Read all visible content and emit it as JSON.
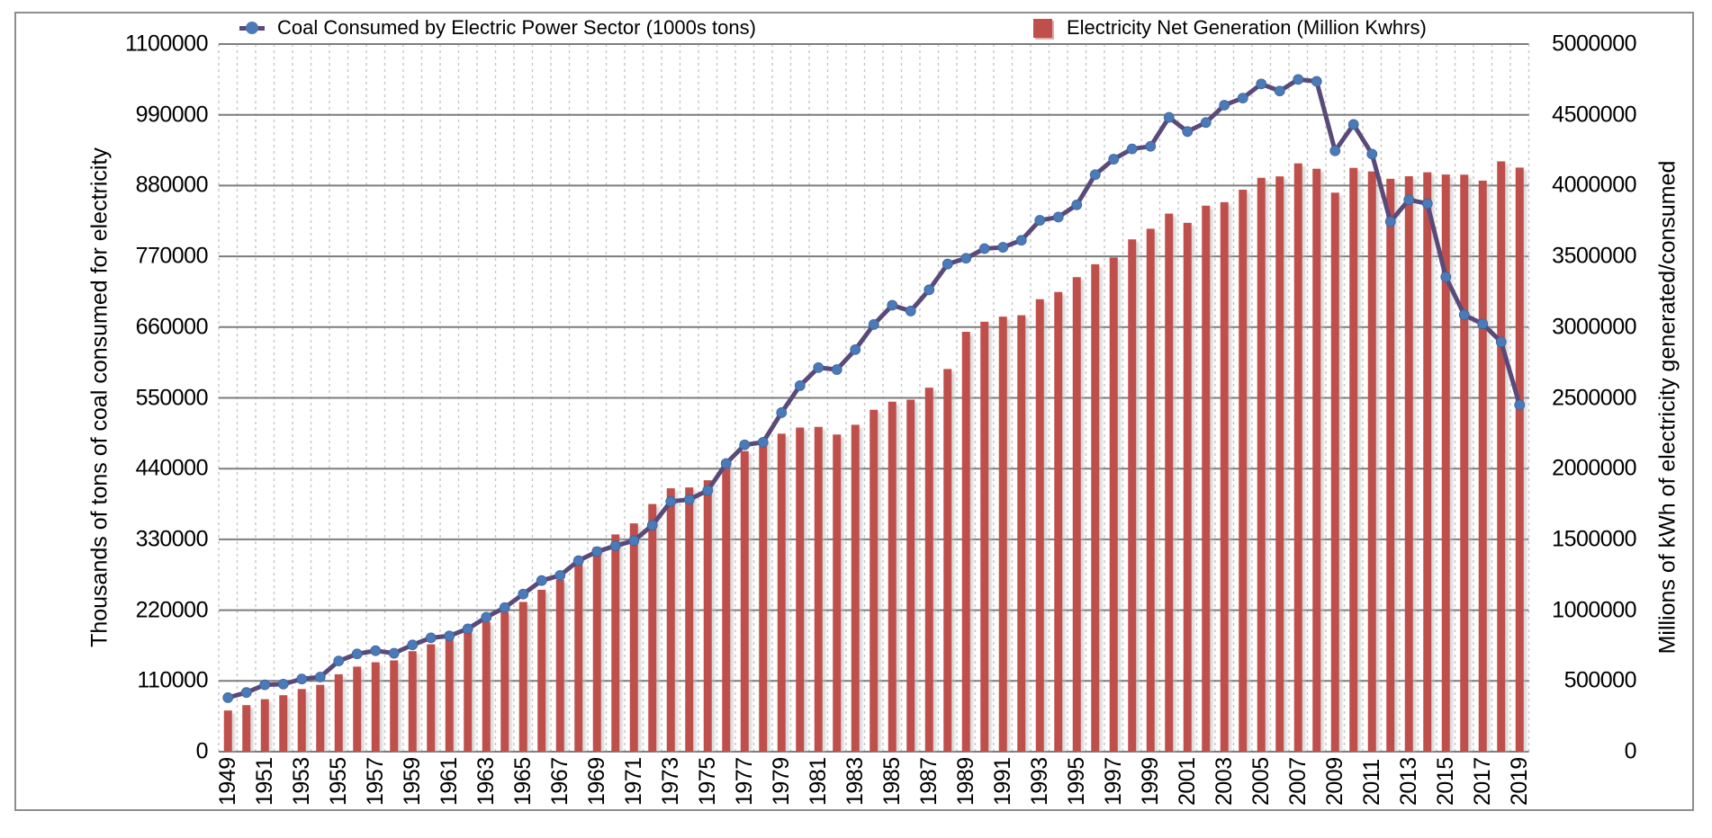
{
  "legend": {
    "items": [
      {
        "label": "Coal Consumed by Electric Power Sector (1000s tons)",
        "marker": "line-with-circle",
        "line_color": "#5a4a7a",
        "marker_color": "#4a7ab8"
      },
      {
        "label": "Electricity Net Generation (Million Kwhrs)",
        "marker": "square",
        "color": "#bf4f4b"
      }
    ]
  },
  "left_axis": {
    "title": "Thousands of tons of coal consumed for electricity",
    "tick_labels": [
      "0",
      "110000",
      "220000",
      "330000",
      "440000",
      "550000",
      "660000",
      "770000",
      "880000",
      "990000",
      "1100000"
    ],
    "min": 0,
    "max": 1100000,
    "step": 110000
  },
  "right_axis": {
    "title": "Millions of kWh of electricity generated/consumed",
    "tick_labels": [
      "0",
      "500000",
      "1000000",
      "1500000",
      "2000000",
      "2500000",
      "3000000",
      "3500000",
      "4000000",
      "4500000",
      "5000000"
    ],
    "min": 0,
    "max": 5000000,
    "step": 500000
  },
  "x_axis": {
    "tick_labels": [
      "1949",
      "1951",
      "1953",
      "1955",
      "1957",
      "1959",
      "1961",
      "1963",
      "1965",
      "1967",
      "1969",
      "1971",
      "1973",
      "1975",
      "1977",
      "1979",
      "1981",
      "1983",
      "1985",
      "1987",
      "1989",
      "1991",
      "1993",
      "1995",
      "1997",
      "1999",
      "2001",
      "2003",
      "2005",
      "2007",
      "2009",
      "2011",
      "2013",
      "2015",
      "2017",
      "2019"
    ]
  },
  "chart_data": {
    "type": "combo",
    "x": [
      1949,
      1950,
      1951,
      1952,
      1953,
      1954,
      1955,
      1956,
      1957,
      1958,
      1959,
      1960,
      1961,
      1962,
      1963,
      1964,
      1965,
      1966,
      1967,
      1968,
      1969,
      1970,
      1971,
      1972,
      1973,
      1974,
      1975,
      1976,
      1977,
      1978,
      1979,
      1980,
      1981,
      1982,
      1983,
      1984,
      1985,
      1986,
      1987,
      1988,
      1989,
      1990,
      1991,
      1992,
      1993,
      1994,
      1995,
      1996,
      1997,
      1998,
      1999,
      2000,
      2001,
      2002,
      2003,
      2004,
      2005,
      2006,
      2007,
      2008,
      2009,
      2010,
      2011,
      2012,
      2013,
      2014,
      2015,
      2016,
      2017,
      2018,
      2019
    ],
    "series": [
      {
        "name": "Coal Consumed by Electric Power Sector (1000s tons)",
        "type": "line",
        "axis": "left",
        "color": "#5a4a7a",
        "marker_color": "#4a7ab8",
        "values": [
          84000,
          92000,
          104000,
          105000,
          113000,
          116000,
          141000,
          152000,
          157000,
          153000,
          166000,
          177000,
          180000,
          191000,
          209000,
          224000,
          245000,
          266000,
          274000,
          297000,
          311000,
          320000,
          328000,
          352000,
          389000,
          392000,
          406000,
          448000,
          477000,
          481000,
          527000,
          569000,
          597000,
          594000,
          625000,
          664000,
          694000,
          685000,
          718000,
          758000,
          767000,
          782000,
          784000,
          795000,
          826000,
          831000,
          850000,
          897000,
          921000,
          937000,
          941000,
          986000,
          964000,
          978000,
          1005000,
          1016000,
          1038000,
          1027000,
          1045000,
          1042000,
          934000,
          975000,
          929000,
          824000,
          858000,
          852000,
          738000,
          679000,
          665000,
          637000,
          539000
        ]
      },
      {
        "name": "Electricity Net Generation (Million Kwhrs)",
        "type": "bar",
        "axis": "right",
        "color": "#bf4f4b",
        "values": [
          291000,
          329000,
          371000,
          399000,
          443000,
          472000,
          547000,
          601000,
          632000,
          645000,
          710000,
          759000,
          797000,
          858000,
          917000,
          987000,
          1058000,
          1144000,
          1214000,
          1329000,
          1445000,
          1535000,
          1613000,
          1750000,
          1861000,
          1867000,
          1918000,
          2038000,
          2124000,
          2206000,
          2247000,
          2290000,
          2295000,
          2241000,
          2310000,
          2416000,
          2473000,
          2487000,
          2572000,
          2704000,
          2967000,
          3038000,
          3074000,
          3084000,
          3197000,
          3248000,
          3353000,
          3444000,
          3492000,
          3620000,
          3695000,
          3802000,
          3737000,
          3858000,
          3883000,
          3971000,
          4055000,
          4065000,
          4157000,
          4119000,
          3950000,
          4125000,
          4100000,
          4048000,
          4066000,
          4094000,
          4078000,
          4077000,
          4035000,
          4171000,
          4127000
        ]
      }
    ],
    "left_ylim": [
      0,
      1100000
    ],
    "right_ylim": [
      0,
      5000000
    ],
    "legend_position": "top",
    "grid": {
      "h_color": "#7d7d7d",
      "v_color": "#c6c6c6",
      "vertical": "every-year-dashed",
      "horizontal_step_left": 110000
    },
    "frame_color": "#8e8e8e",
    "background": "#ffffff",
    "bar_shadow_color": "#bdbdbd"
  }
}
